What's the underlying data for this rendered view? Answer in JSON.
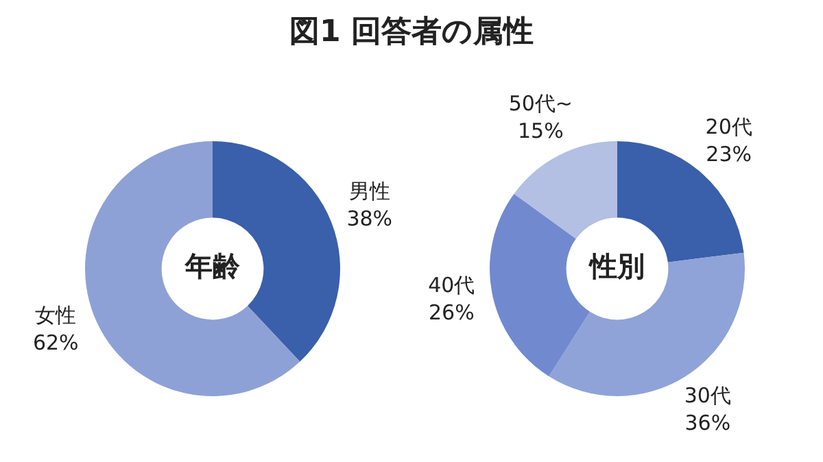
{
  "chart_data": [
    {
      "type": "donut",
      "title": "図1 回答者の属性",
      "annotations": [
        "年齢"
      ],
      "categories": [
        "男性",
        "女性"
      ],
      "values": [
        38,
        62
      ],
      "colors": [
        "#3a5fab",
        "#8ea1d6"
      ],
      "value_labels": [
        "38%",
        "62%"
      ],
      "legend": false
    },
    {
      "type": "donut",
      "annotations": [
        "性別"
      ],
      "categories": [
        "20代",
        "30代",
        "40代",
        "50代~"
      ],
      "values": [
        23,
        36,
        26,
        15
      ],
      "colors": [
        "#3a5fab",
        "#8fa3d8",
        "#7189cf",
        "#b3bfe3"
      ],
      "value_labels": [
        "23%",
        "36%",
        "26%",
        "15%"
      ],
      "legend": false
    }
  ]
}
